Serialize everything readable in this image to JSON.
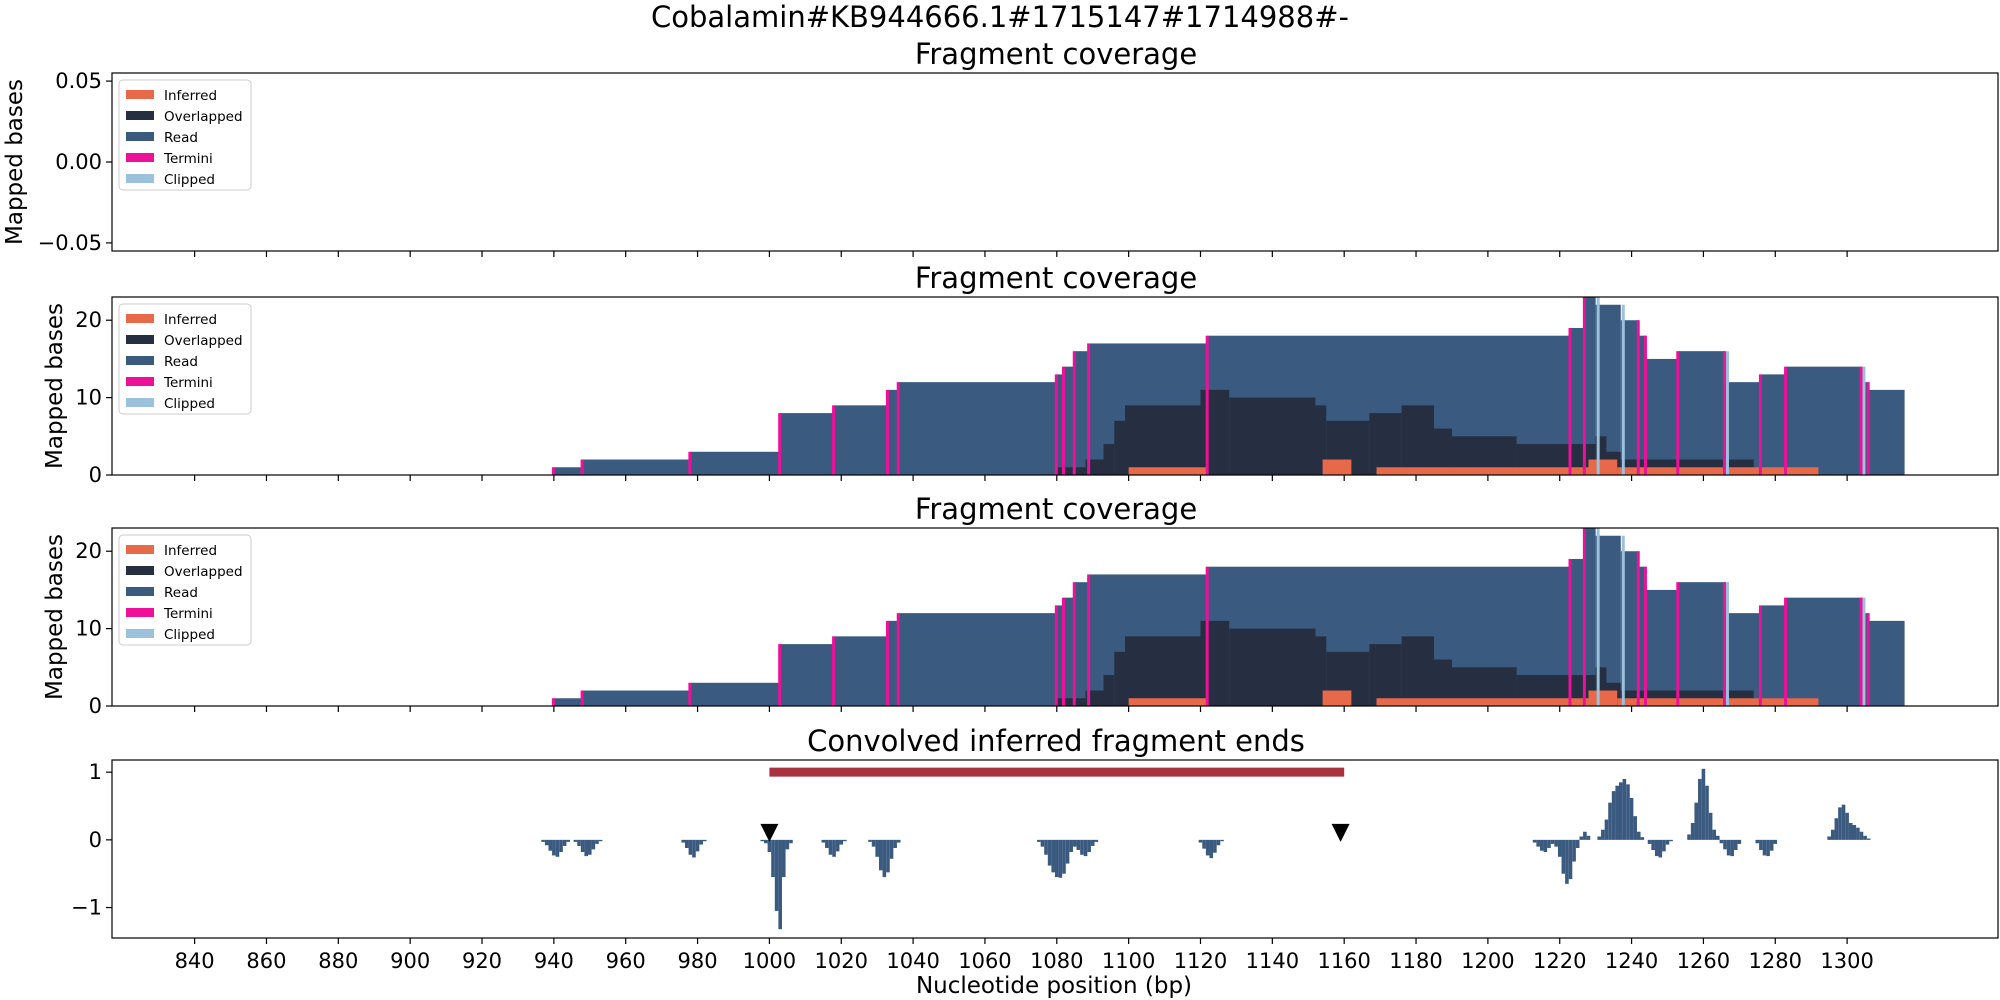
{
  "figure": {
    "suptitle": "Cobalamin#KB944666.1#1715147#1714988#-",
    "xlabel": "Nucleotide position (bp)"
  },
  "legend": [
    {
      "label": "Inferred",
      "color": "#e8694a"
    },
    {
      "label": "Overlapped",
      "color": "#262f41"
    },
    {
      "label": "Read",
      "color": "#3b5a80"
    },
    {
      "label": "Termini",
      "color": "#ee1099"
    },
    {
      "label": "Clipped",
      "color": "#9cc1dc"
    }
  ],
  "colors": {
    "bar": "#3b5a80",
    "red_bar": "#a83240",
    "triangle": "#000000"
  },
  "chart_data": [
    {
      "type": "area",
      "title": "Fragment coverage",
      "ylabel": "Mapped bases",
      "xlim": [
        817,
        1342
      ],
      "ylim": [
        -0.055,
        0.055
      ],
      "yticks": [
        -0.05,
        0.0,
        0.05
      ],
      "ytick_labels": [
        "−0.05",
        "0.00",
        "0.05"
      ],
      "legend_position": "upper-left",
      "series": []
    },
    {
      "type": "area",
      "title": "Fragment coverage",
      "ylabel": "Mapped bases",
      "xlim": [
        817,
        1342
      ],
      "ylim": [
        0,
        23
      ],
      "yticks": [
        0,
        10,
        20
      ],
      "ytick_labels": [
        "0",
        "10",
        "20"
      ],
      "legend_position": "upper-left",
      "series": [
        {
          "name": "Read",
          "steps": [
            [
              940,
              1
            ],
            [
              948,
              2
            ],
            [
              978,
              3
            ],
            [
              1003,
              8
            ],
            [
              1018,
              9
            ],
            [
              1033,
              11
            ],
            [
              1036,
              12
            ],
            [
              1080,
              13
            ],
            [
              1082,
              14
            ],
            [
              1085,
              16
            ],
            [
              1089,
              17
            ],
            [
              1122,
              18
            ],
            [
              1223,
              19
            ],
            [
              1227,
              23
            ],
            [
              1230,
              22
            ],
            [
              1237,
              20
            ],
            [
              1242,
              18
            ],
            [
              1244,
              15
            ],
            [
              1253,
              16
            ],
            [
              1266,
              12
            ],
            [
              1276,
              13
            ],
            [
              1283,
              14
            ],
            [
              1304,
              12
            ],
            [
              1306,
              11
            ],
            [
              1316,
              0
            ]
          ]
        },
        {
          "name": "Overlapped",
          "steps": [
            [
              1080,
              1
            ],
            [
              1088,
              2
            ],
            [
              1093,
              4
            ],
            [
              1096,
              7
            ],
            [
              1099,
              9
            ],
            [
              1120,
              11
            ],
            [
              1128,
              10
            ],
            [
              1152,
              9
            ],
            [
              1155,
              7
            ],
            [
              1167,
              8
            ],
            [
              1176,
              9
            ],
            [
              1185,
              6
            ],
            [
              1190,
              5
            ],
            [
              1208,
              4
            ],
            [
              1230,
              5
            ],
            [
              1233,
              3
            ],
            [
              1237,
              2
            ],
            [
              1274,
              0
            ]
          ]
        },
        {
          "name": "Inferred",
          "steps": [
            [
              1100,
              1
            ],
            [
              1122,
              0
            ],
            [
              1154,
              2
            ],
            [
              1162,
              0
            ],
            [
              1169,
              1
            ],
            [
              1228,
              2
            ],
            [
              1236,
              1
            ],
            [
              1292,
              0
            ]
          ]
        },
        {
          "name": "Termini",
          "x": [
            940,
            948,
            978,
            1003,
            1018,
            1033,
            1036,
            1080,
            1082,
            1085,
            1089,
            1122,
            1223,
            1227,
            1242,
            1244,
            1253,
            1266,
            1276,
            1283,
            1304,
            1306
          ]
        },
        {
          "name": "Clipped",
          "x": [
            1230,
            1237,
            1266,
            1304
          ]
        }
      ]
    },
    {
      "type": "area",
      "title": "Fragment coverage",
      "ylabel": "Mapped bases",
      "xlim": [
        817,
        1342
      ],
      "ylim": [
        0,
        23
      ],
      "yticks": [
        0,
        10,
        20
      ],
      "ytick_labels": [
        "0",
        "10",
        "20"
      ],
      "legend_position": "upper-left",
      "series": [
        {
          "name": "Read",
          "steps": [
            [
              940,
              1
            ],
            [
              948,
              2
            ],
            [
              978,
              3
            ],
            [
              1003,
              8
            ],
            [
              1018,
              9
            ],
            [
              1033,
              11
            ],
            [
              1036,
              12
            ],
            [
              1080,
              13
            ],
            [
              1082,
              14
            ],
            [
              1085,
              16
            ],
            [
              1089,
              17
            ],
            [
              1122,
              18
            ],
            [
              1223,
              19
            ],
            [
              1227,
              23
            ],
            [
              1230,
              22
            ],
            [
              1237,
              20
            ],
            [
              1242,
              18
            ],
            [
              1244,
              15
            ],
            [
              1253,
              16
            ],
            [
              1266,
              12
            ],
            [
              1276,
              13
            ],
            [
              1283,
              14
            ],
            [
              1304,
              12
            ],
            [
              1306,
              11
            ],
            [
              1316,
              0
            ]
          ]
        },
        {
          "name": "Overlapped",
          "steps": [
            [
              1080,
              1
            ],
            [
              1088,
              2
            ],
            [
              1093,
              4
            ],
            [
              1096,
              7
            ],
            [
              1099,
              9
            ],
            [
              1120,
              11
            ],
            [
              1128,
              10
            ],
            [
              1152,
              9
            ],
            [
              1155,
              7
            ],
            [
              1167,
              8
            ],
            [
              1176,
              9
            ],
            [
              1185,
              6
            ],
            [
              1190,
              5
            ],
            [
              1208,
              4
            ],
            [
              1230,
              5
            ],
            [
              1233,
              3
            ],
            [
              1237,
              2
            ],
            [
              1274,
              0
            ]
          ]
        },
        {
          "name": "Inferred",
          "steps": [
            [
              1100,
              1
            ],
            [
              1122,
              0
            ],
            [
              1154,
              2
            ],
            [
              1162,
              0
            ],
            [
              1169,
              1
            ],
            [
              1228,
              2
            ],
            [
              1236,
              1
            ],
            [
              1292,
              0
            ]
          ]
        },
        {
          "name": "Termini",
          "x": [
            940,
            948,
            978,
            1003,
            1018,
            1033,
            1036,
            1080,
            1082,
            1085,
            1089,
            1122,
            1223,
            1227,
            1242,
            1244,
            1253,
            1266,
            1276,
            1283,
            1304,
            1306
          ]
        },
        {
          "name": "Clipped",
          "x": [
            1230,
            1237,
            1266,
            1304
          ]
        }
      ]
    },
    {
      "type": "bar",
      "title": "Convolved inferred fragment ends",
      "xlim": [
        817,
        1342
      ],
      "ylim": [
        -1.45,
        1.18
      ],
      "yticks": [
        -1,
        0,
        1
      ],
      "ytick_labels": [
        "−1",
        "0",
        "1"
      ],
      "xticks": [
        840,
        860,
        880,
        900,
        920,
        940,
        960,
        980,
        1000,
        1020,
        1040,
        1060,
        1080,
        1100,
        1120,
        1140,
        1160,
        1180,
        1200,
        1220,
        1240,
        1260,
        1280,
        1300
      ],
      "xtick_labels": [
        "840",
        "860",
        "880",
        "900",
        "920",
        "940",
        "960",
        "980",
        "1000",
        "1020",
        "1040",
        "1060",
        "1080",
        "1100",
        "1120",
        "1140",
        "1160",
        "1180",
        "1200",
        "1220",
        "1240",
        "1260",
        "1280",
        "1300"
      ],
      "bars": [
        [
          937,
          -0.03
        ],
        [
          938,
          -0.08
        ],
        [
          939,
          -0.16
        ],
        [
          940,
          -0.23
        ],
        [
          941,
          -0.25
        ],
        [
          942,
          -0.18
        ],
        [
          943,
          -0.09
        ],
        [
          944,
          -0.03
        ],
        [
          946,
          -0.03
        ],
        [
          947,
          -0.09
        ],
        [
          948,
          -0.18
        ],
        [
          949,
          -0.24
        ],
        [
          950,
          -0.22
        ],
        [
          951,
          -0.14
        ],
        [
          952,
          -0.06
        ],
        [
          953,
          -0.02
        ],
        [
          976,
          -0.04
        ],
        [
          977,
          -0.12
        ],
        [
          978,
          -0.22
        ],
        [
          979,
          -0.26
        ],
        [
          980,
          -0.17
        ],
        [
          981,
          -0.07
        ],
        [
          982,
          -0.02
        ],
        [
          998,
          -0.02
        ],
        [
          999,
          -0.05
        ],
        [
          1000,
          -0.18
        ],
        [
          1001,
          -0.55
        ],
        [
          1002,
          -1.05
        ],
        [
          1003,
          -1.32
        ],
        [
          1004,
          -0.55
        ],
        [
          1005,
          -0.14
        ],
        [
          1006,
          -0.05
        ],
        [
          1015,
          -0.04
        ],
        [
          1016,
          -0.12
        ],
        [
          1017,
          -0.22
        ],
        [
          1018,
          -0.25
        ],
        [
          1019,
          -0.17
        ],
        [
          1020,
          -0.07
        ],
        [
          1021,
          -0.02
        ],
        [
          1028,
          -0.03
        ],
        [
          1029,
          -0.1
        ],
        [
          1030,
          -0.25
        ],
        [
          1031,
          -0.45
        ],
        [
          1032,
          -0.55
        ],
        [
          1033,
          -0.48
        ],
        [
          1034,
          -0.28
        ],
        [
          1035,
          -0.12
        ],
        [
          1036,
          -0.04
        ],
        [
          1075,
          -0.03
        ],
        [
          1076,
          -0.1
        ],
        [
          1077,
          -0.22
        ],
        [
          1078,
          -0.38
        ],
        [
          1079,
          -0.48
        ],
        [
          1080,
          -0.55
        ],
        [
          1081,
          -0.56
        ],
        [
          1082,
          -0.5
        ],
        [
          1083,
          -0.35
        ],
        [
          1084,
          -0.18
        ],
        [
          1085,
          -0.1
        ],
        [
          1086,
          -0.15
        ],
        [
          1087,
          -0.22
        ],
        [
          1088,
          -0.24
        ],
        [
          1089,
          -0.18
        ],
        [
          1090,
          -0.09
        ],
        [
          1091,
          -0.03
        ],
        [
          1120,
          -0.04
        ],
        [
          1121,
          -0.13
        ],
        [
          1122,
          -0.23
        ],
        [
          1123,
          -0.27
        ],
        [
          1124,
          -0.19
        ],
        [
          1125,
          -0.08
        ],
        [
          1126,
          -0.02
        ],
        [
          1213,
          -0.04
        ],
        [
          1214,
          -0.1
        ],
        [
          1215,
          -0.16
        ],
        [
          1216,
          -0.18
        ],
        [
          1217,
          -0.12
        ],
        [
          1218,
          -0.06
        ],
        [
          1219,
          -0.1
        ],
        [
          1220,
          -0.25
        ],
        [
          1221,
          -0.5
        ],
        [
          1222,
          -0.65
        ],
        [
          1223,
          -0.58
        ],
        [
          1224,
          -0.32
        ],
        [
          1225,
          -0.12
        ],
        [
          1226,
          0.05
        ],
        [
          1227,
          0.12
        ],
        [
          1228,
          0.06
        ],
        [
          1231,
          0.05
        ],
        [
          1232,
          0.15
        ],
        [
          1233,
          0.3
        ],
        [
          1234,
          0.55
        ],
        [
          1235,
          0.72
        ],
        [
          1236,
          0.8
        ],
        [
          1237,
          0.85
        ],
        [
          1238,
          0.9
        ],
        [
          1239,
          0.82
        ],
        [
          1240,
          0.62
        ],
        [
          1241,
          0.35
        ],
        [
          1242,
          0.12
        ],
        [
          1243,
          0.04
        ],
        [
          1245,
          -0.06
        ],
        [
          1246,
          -0.15
        ],
        [
          1247,
          -0.24
        ],
        [
          1248,
          -0.26
        ],
        [
          1249,
          -0.17
        ],
        [
          1250,
          -0.07
        ],
        [
          1251,
          -0.02
        ],
        [
          1256,
          0.08
        ],
        [
          1257,
          0.25
        ],
        [
          1258,
          0.55
        ],
        [
          1259,
          0.9
        ],
        [
          1260,
          1.05
        ],
        [
          1261,
          0.8
        ],
        [
          1262,
          0.4
        ],
        [
          1263,
          0.15
        ],
        [
          1264,
          0.06
        ],
        [
          1265,
          -0.05
        ],
        [
          1266,
          -0.14
        ],
        [
          1267,
          -0.23
        ],
        [
          1268,
          -0.24
        ],
        [
          1269,
          -0.15
        ],
        [
          1270,
          -0.06
        ],
        [
          1275,
          -0.05
        ],
        [
          1276,
          -0.15
        ],
        [
          1277,
          -0.23
        ],
        [
          1278,
          -0.24
        ],
        [
          1279,
          -0.16
        ],
        [
          1280,
          -0.06
        ],
        [
          1295,
          0.05
        ],
        [
          1296,
          0.15
        ],
        [
          1297,
          0.32
        ],
        [
          1298,
          0.48
        ],
        [
          1299,
          0.52
        ],
        [
          1300,
          0.4
        ],
        [
          1301,
          0.25
        ],
        [
          1302,
          0.22
        ],
        [
          1303,
          0.18
        ],
        [
          1304,
          0.12
        ],
        [
          1305,
          0.06
        ],
        [
          1306,
          0.02
        ]
      ],
      "span": [
        1000,
        1160
      ],
      "markers_x": [
        1000,
        1159
      ]
    }
  ]
}
